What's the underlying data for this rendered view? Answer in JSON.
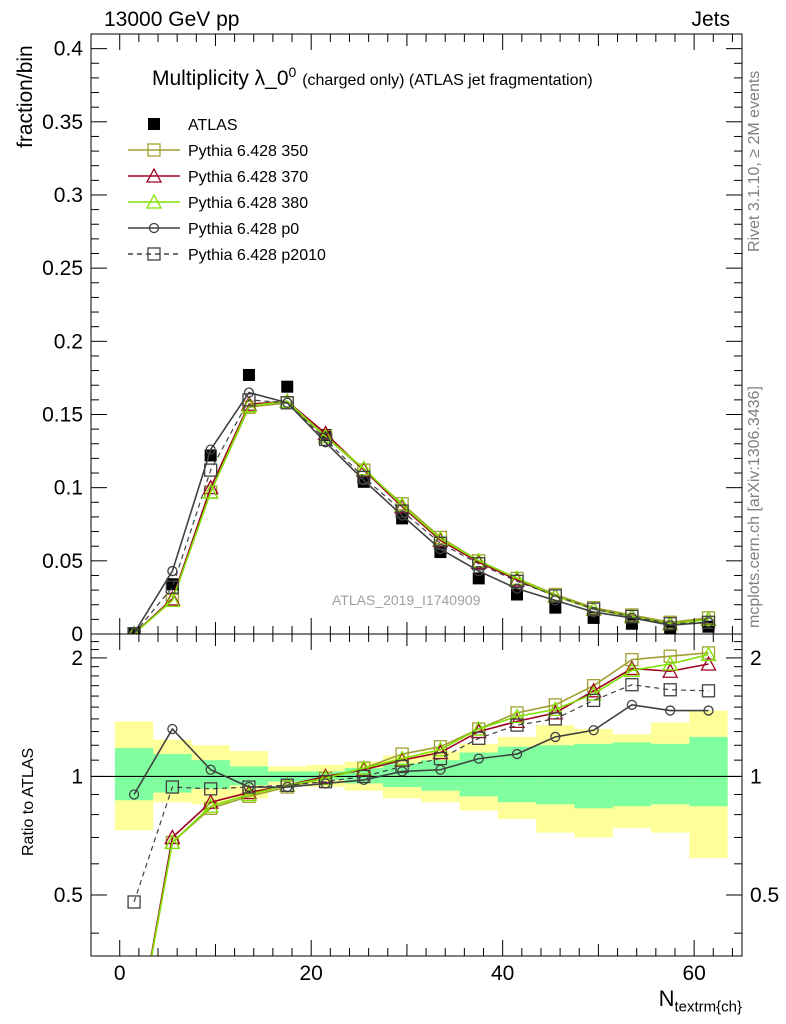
{
  "header": {
    "beam": "13000 GeV pp",
    "category": "Jets",
    "watermark_rivet": "Rivet 3.1.10, ≥ 2M events",
    "watermark_mcplots": "mcplots.cern.ch [arXiv:1306.3436]"
  },
  "chart_data": [
    {
      "type": "scatter",
      "title": "Multiplicity λ_0",
      "title_sup": "0",
      "title_suffix": "(charged only) (ATLAS jet fragmentation)",
      "ylabel": "fraction/bin",
      "xlabel_main": "N",
      "xlabel_sub": "textrm{ch}",
      "analysis_tag": "ATLAS_2019_I1740909",
      "xlim": [
        -3,
        65
      ],
      "ylim": [
        0,
        0.41
      ],
      "yticks": [
        0,
        0.05,
        0.1,
        0.15,
        0.2,
        0.25,
        0.3,
        0.35,
        0.4
      ],
      "ytick_labels": [
        "0",
        "0.05",
        "0.1",
        "0.15",
        "0.2",
        "0.25",
        "0.3",
        "0.35",
        "0.4"
      ],
      "x": [
        1.5,
        5.5,
        9.5,
        13.5,
        17.5,
        21.5,
        25.5,
        29.5,
        33.5,
        37.5,
        41.5,
        45.5,
        49.5,
        53.5,
        57.5,
        61.5
      ],
      "series": [
        {
          "name": "ATLAS",
          "color": "#000000",
          "marker": "filled-square",
          "line": "none",
          "values": [
            0.0005,
            0.034,
            0.122,
            0.177,
            0.169,
            0.136,
            0.104,
            0.079,
            0.056,
            0.038,
            0.027,
            0.018,
            0.011,
            0.007,
            0.004,
            0.005
          ]
        },
        {
          "name": "Pythia 6.428 350",
          "color": "#a0a030",
          "marker": "open-square",
          "line": "solid",
          "values": [
            0.0002,
            0.023,
            0.097,
            0.155,
            0.158,
            0.135,
            0.112,
            0.089,
            0.066,
            0.05,
            0.038,
            0.027,
            0.018,
            0.013,
            0.008,
            0.011
          ]
        },
        {
          "name": "Pythia 6.428 370",
          "color": "#a00020",
          "marker": "open-triangle",
          "line": "solid",
          "values": [
            0.0002,
            0.024,
            0.1,
            0.157,
            0.159,
            0.137,
            0.112,
            0.087,
            0.064,
            0.049,
            0.037,
            0.026,
            0.017,
            0.012,
            0.007,
            0.01
          ]
        },
        {
          "name": "Pythia 6.428 380",
          "color": "#80e000",
          "marker": "open-triangle",
          "line": "solid",
          "values": [
            0.0002,
            0.023,
            0.097,
            0.156,
            0.159,
            0.135,
            0.113,
            0.088,
            0.065,
            0.05,
            0.038,
            0.026,
            0.017,
            0.012,
            0.007,
            0.01
          ]
        },
        {
          "name": "Pythia 6.428 p0",
          "color": "#404040",
          "marker": "open-circle",
          "line": "solid",
          "values": [
            0.0005,
            0.043,
            0.126,
            0.165,
            0.158,
            0.131,
            0.105,
            0.081,
            0.058,
            0.043,
            0.031,
            0.023,
            0.015,
            0.011,
            0.006,
            0.008
          ]
        },
        {
          "name": "Pythia 6.428 p2010",
          "color": "#404040",
          "marker": "open-square",
          "line": "dashed",
          "values": [
            0.0002,
            0.032,
            0.112,
            0.16,
            0.158,
            0.133,
            0.107,
            0.084,
            0.062,
            0.048,
            0.036,
            0.026,
            0.017,
            0.012,
            0.007,
            0.008
          ]
        }
      ]
    },
    {
      "type": "line",
      "ylabel": "Ratio to ATLAS",
      "xlim": [
        -3,
        65
      ],
      "ylim": [
        0.35,
        2.3
      ],
      "yscale": "log",
      "yticks": [
        0.5,
        1,
        2
      ],
      "ytick_labels": [
        "0.5",
        "1",
        "2"
      ],
      "xticks": [
        0,
        20,
        40,
        60
      ],
      "xtick_labels": [
        "0",
        "20",
        "40",
        "60"
      ],
      "x": [
        1.5,
        5.5,
        9.5,
        13.5,
        17.5,
        21.5,
        25.5,
        29.5,
        33.5,
        37.5,
        41.5,
        45.5,
        49.5,
        53.5,
        57.5,
        61.5
      ],
      "bands": {
        "yellow": {
          "color": "#ffff99",
          "lower": [
            0.73,
            0.86,
            0.85,
            0.88,
            0.95,
            0.94,
            0.92,
            0.88,
            0.86,
            0.82,
            0.78,
            0.72,
            0.7,
            0.74,
            0.72,
            0.62
          ],
          "upper": [
            1.38,
            1.24,
            1.2,
            1.16,
            1.06,
            1.07,
            1.09,
            1.13,
            1.16,
            1.21,
            1.26,
            1.35,
            1.32,
            1.28,
            1.37,
            1.47
          ]
        },
        "green": {
          "color": "#7fff9f",
          "lower": [
            0.87,
            0.91,
            0.93,
            0.95,
            0.97,
            0.98,
            0.96,
            0.94,
            0.92,
            0.89,
            0.86,
            0.85,
            0.83,
            0.84,
            0.85,
            0.84
          ]
        },
        "green_upper": [
          1.18,
          1.14,
          1.1,
          1.06,
          1.03,
          1.03,
          1.05,
          1.08,
          1.1,
          1.15,
          1.19,
          1.2,
          1.21,
          1.22,
          1.21,
          1.26
        ]
      },
      "series": [
        {
          "name": "Pythia 6.428 350",
          "color": "#a0a030",
          "marker": "open-square",
          "line": "solid",
          "values": [
            0.2,
            0.68,
            0.83,
            0.89,
            0.94,
            0.99,
            1.05,
            1.14,
            1.19,
            1.32,
            1.45,
            1.52,
            1.7,
            1.98,
            2.02,
            2.06
          ]
        },
        {
          "name": "Pythia 6.428 370",
          "color": "#a00020",
          "marker": "open-triangle",
          "line": "solid",
          "values": [
            0.2,
            0.7,
            0.86,
            0.91,
            0.95,
            1.0,
            1.04,
            1.1,
            1.15,
            1.3,
            1.38,
            1.45,
            1.65,
            1.88,
            1.85,
            1.93
          ]
        },
        {
          "name": "Pythia 6.428 380",
          "color": "#80e000",
          "marker": "open-triangle",
          "line": "solid",
          "values": [
            0.2,
            0.68,
            0.84,
            0.9,
            0.95,
            0.99,
            1.05,
            1.11,
            1.17,
            1.32,
            1.42,
            1.48,
            1.62,
            1.86,
            1.93,
            2.04
          ]
        },
        {
          "name": "Pythia 6.428 p0",
          "color": "#404040",
          "marker": "open-circle",
          "line": "solid",
          "values": [
            0.9,
            1.32,
            1.04,
            0.94,
            0.94,
            0.96,
            0.98,
            1.03,
            1.04,
            1.11,
            1.14,
            1.26,
            1.31,
            1.52,
            1.47,
            1.47
          ]
        },
        {
          "name": "Pythia 6.428 p2010",
          "color": "#404040",
          "marker": "open-square",
          "line": "dashed",
          "values": [
            0.48,
            0.94,
            0.93,
            0.94,
            0.95,
            0.97,
            1.0,
            1.06,
            1.11,
            1.25,
            1.35,
            1.4,
            1.56,
            1.71,
            1.66,
            1.65
          ]
        }
      ]
    }
  ]
}
